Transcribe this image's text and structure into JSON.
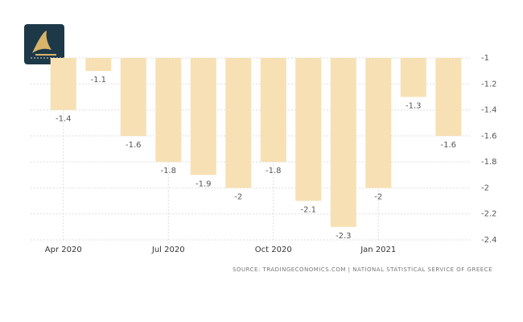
{
  "chart_data": {
    "type": "bar",
    "categories": [
      "Apr 2020",
      null,
      null,
      "Jul 2020",
      null,
      null,
      "Oct 2020",
      null,
      null,
      "Jan 2021",
      null,
      null
    ],
    "values": [
      -1.4,
      -1.1,
      -1.6,
      -1.8,
      -1.9,
      -2,
      -1.8,
      -2.1,
      -2.3,
      -2,
      -1.3,
      -1.6
    ],
    "color": "#f7e0b3",
    "ylim": [
      -2.4,
      -1
    ],
    "yticks": [
      -1,
      -1.2,
      -1.4,
      -1.6,
      -1.8,
      -2,
      -2.2,
      -2.4
    ],
    "grid": true,
    "source": "SOURCE: TRADINGECONOMICS.COM | NATIONAL STATISTICAL SERVICE OF GREECE"
  }
}
